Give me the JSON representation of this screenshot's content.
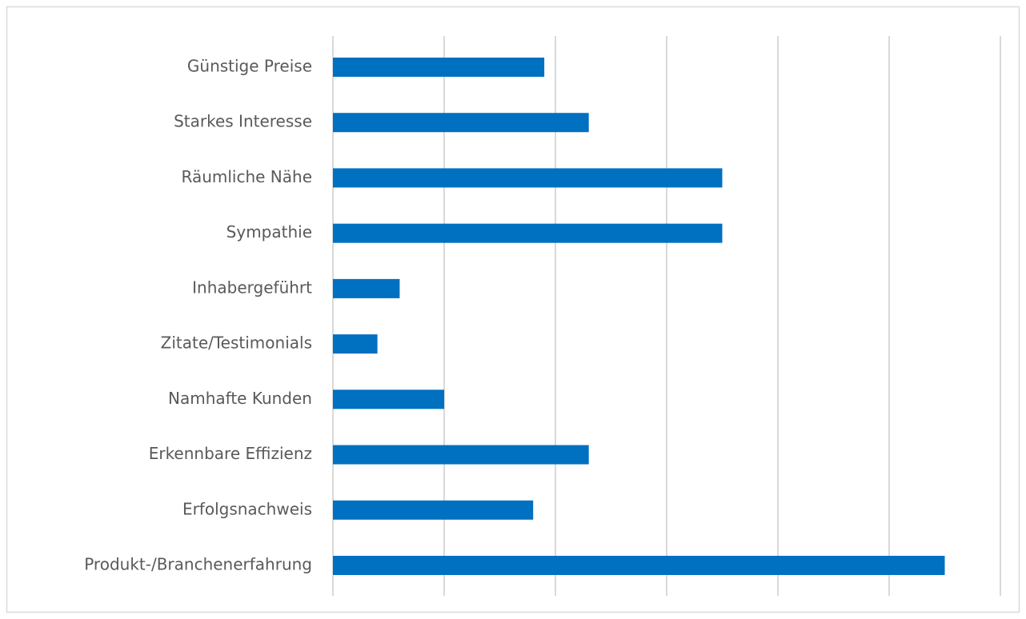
{
  "chart_data": {
    "type": "barh",
    "categories": [
      "Günstige Preise",
      "Starkes Interesse",
      "Räumliche Nähe",
      "Sympathie",
      "Inhabergeführt",
      "Zitate/Testimonials",
      "Namhafte Kunden",
      "Erkennbare Effizienz",
      "Erfolgsnachweis",
      "Produkt-/Branchenerfahrung"
    ],
    "values": [
      1.9,
      2.3,
      3.5,
      3.5,
      0.6,
      0.4,
      1.0,
      2.3,
      1.8,
      5.5
    ],
    "color": "#0070c0",
    "xlim": [
      0,
      6
    ],
    "xticks": [
      0,
      1,
      2,
      3,
      4,
      5,
      6
    ],
    "grid": true
  }
}
